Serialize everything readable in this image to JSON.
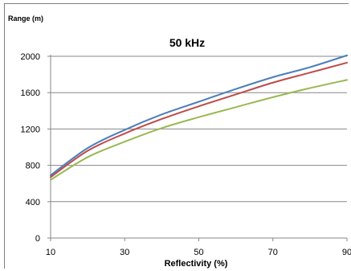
{
  "chart_data": {
    "type": "line",
    "title": "50 kHz",
    "xlabel": "Reflectivity (%)",
    "ylabel": "Range (m)",
    "xlim": [
      10,
      90
    ],
    "ylim": [
      0,
      2000
    ],
    "x_ticks": [
      10,
      30,
      50,
      70,
      90
    ],
    "y_ticks": [
      0,
      400,
      800,
      1200,
      1600,
      2000
    ],
    "grid": "horizontal",
    "legend": "none",
    "series": [
      {
        "color": "#4a7ebb",
        "x": [
          10,
          20,
          30,
          40,
          50,
          60,
          70,
          80,
          90
        ],
        "y": [
          690,
          990,
          1190,
          1360,
          1500,
          1640,
          1770,
          1880,
          2010
        ]
      },
      {
        "color": "#be4b48",
        "x": [
          10,
          20,
          30,
          40,
          50,
          60,
          70,
          80,
          90
        ],
        "y": [
          670,
          960,
          1150,
          1310,
          1450,
          1580,
          1710,
          1820,
          1930
        ]
      },
      {
        "color": "#98b954",
        "x": [
          10,
          20,
          30,
          40,
          50,
          60,
          70,
          80,
          90
        ],
        "y": [
          640,
          890,
          1060,
          1210,
          1330,
          1440,
          1550,
          1650,
          1740
        ]
      }
    ]
  }
}
